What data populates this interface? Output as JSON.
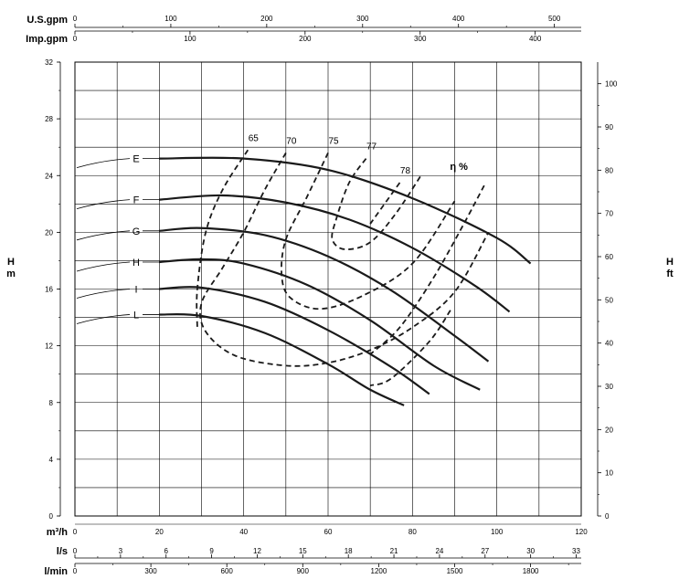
{
  "chart_data": {
    "type": "line",
    "title": "",
    "x": {
      "label": "m³/h",
      "range": [
        0,
        120
      ],
      "ticks": [
        0,
        20,
        40,
        60,
        80,
        100,
        120
      ],
      "grid_step": 10
    },
    "y_left": {
      "label": "H",
      "unit": "m",
      "range": [
        0,
        32
      ],
      "ticks": [
        0,
        4,
        8,
        12,
        16,
        20,
        24,
        28,
        32
      ],
      "grid_step": 2
    },
    "y_right": {
      "label": "H",
      "unit": "ft",
      "range": [
        0,
        105
      ],
      "ticks": [
        0,
        10,
        20,
        30,
        40,
        50,
        60,
        70,
        80,
        90,
        100
      ]
    },
    "secondary_x_axes": [
      {
        "label": "U.S.gpm",
        "position": "top",
        "range": [
          0,
          528
        ],
        "ticks": [
          0,
          100,
          200,
          300,
          400,
          500
        ]
      },
      {
        "label": "Imp.gpm",
        "position": "top",
        "range": [
          0,
          440
        ],
        "ticks": [
          0,
          100,
          200,
          300,
          400
        ]
      },
      {
        "label": "l/s",
        "position": "bottom",
        "range": [
          0,
          33.33
        ],
        "ticks": [
          0,
          3,
          6,
          9,
          12,
          15,
          18,
          21,
          24,
          27,
          30,
          33
        ]
      },
      {
        "label": "l/min",
        "position": "bottom",
        "range": [
          0,
          2000
        ],
        "ticks": [
          0,
          300,
          600,
          900,
          1200,
          1500,
          1800
        ]
      }
    ],
    "grid": true,
    "series": [
      {
        "name": "E",
        "style": "solid",
        "x": [
          20,
          40,
          60,
          80,
          100,
          108
        ],
        "y": [
          25.2,
          25.2,
          24.4,
          22.4,
          19.6,
          17.8
        ]
      },
      {
        "name": "F",
        "style": "solid",
        "x": [
          20,
          35,
          50,
          65,
          80,
          95,
          103
        ],
        "y": [
          22.3,
          22.6,
          22.1,
          20.9,
          18.9,
          16.2,
          14.4
        ]
      },
      {
        "name": "G",
        "style": "solid",
        "x": [
          20,
          30,
          45,
          60,
          75,
          90,
          98
        ],
        "y": [
          20.1,
          20.3,
          19.8,
          18.3,
          15.9,
          12.7,
          10.9
        ]
      },
      {
        "name": "H",
        "style": "solid",
        "x": [
          20,
          30,
          40,
          55,
          70,
          85,
          96
        ],
        "y": [
          17.9,
          18.1,
          17.8,
          16.3,
          13.8,
          10.6,
          8.9
        ]
      },
      {
        "name": "I",
        "style": "solid",
        "x": [
          20,
          30,
          45,
          60,
          75,
          84
        ],
        "y": [
          16.0,
          16.1,
          15.1,
          13.1,
          10.5,
          8.6
        ]
      },
      {
        "name": "L",
        "style": "solid",
        "x": [
          20,
          30,
          45,
          60,
          70,
          78
        ],
        "y": [
          14.2,
          14.1,
          12.9,
          10.7,
          8.9,
          7.8
        ]
      }
    ],
    "efficiency_curves": [
      {
        "name": "65",
        "style": "dashed",
        "x": [
          41,
          35,
          31,
          29,
          29
        ],
        "y": [
          25.8,
          23.0,
          20.0,
          16.0,
          13.3
        ]
      },
      {
        "name": "70",
        "style": "dashed",
        "x": [
          50,
          45,
          40,
          35,
          30,
          31,
          38,
          50,
          60,
          70,
          80,
          90,
          98
        ],
        "y": [
          25.6,
          23.0,
          20.0,
          17.5,
          15.0,
          13.0,
          11.3,
          10.6,
          10.8,
          11.7,
          13.3,
          15.8,
          20.0
        ]
      },
      {
        "name": "75",
        "style": "dashed",
        "x": [
          60,
          55,
          50,
          49,
          51,
          58,
          68,
          80,
          90
        ],
        "y": [
          25.6,
          22.5,
          19.5,
          17.0,
          15.4,
          14.6,
          15.5,
          17.8,
          22.2
        ]
      },
      {
        "name": "77",
        "style": "dashed",
        "x": [
          69,
          65,
          62,
          61,
          64,
          70,
          76,
          82
        ],
        "y": [
          25.2,
          23.5,
          21.0,
          19.5,
          18.8,
          19.3,
          21.3,
          24.0
        ]
      },
      {
        "name": "78",
        "style": "dashed",
        "x": [
          77,
          70
        ],
        "y": [
          23.5,
          20.6
        ]
      },
      {
        "name": "",
        "style": "dashed",
        "x": [
          97,
          92,
          85,
          77,
          70
        ],
        "y": [
          23.3,
          20.5,
          16.8,
          13.3,
          11.4
        ]
      },
      {
        "name": "",
        "style": "dashed",
        "x": [
          89,
          84,
          75,
          70
        ],
        "y": [
          14.5,
          12.3,
          9.7,
          9.2
        ]
      }
    ],
    "curve_labels": [
      "E",
      "F",
      "G",
      "H",
      "I",
      "L"
    ],
    "efficiency_labels": [
      "65",
      "70",
      "75",
      "77",
      "78"
    ],
    "efficiency_title": "η %"
  }
}
